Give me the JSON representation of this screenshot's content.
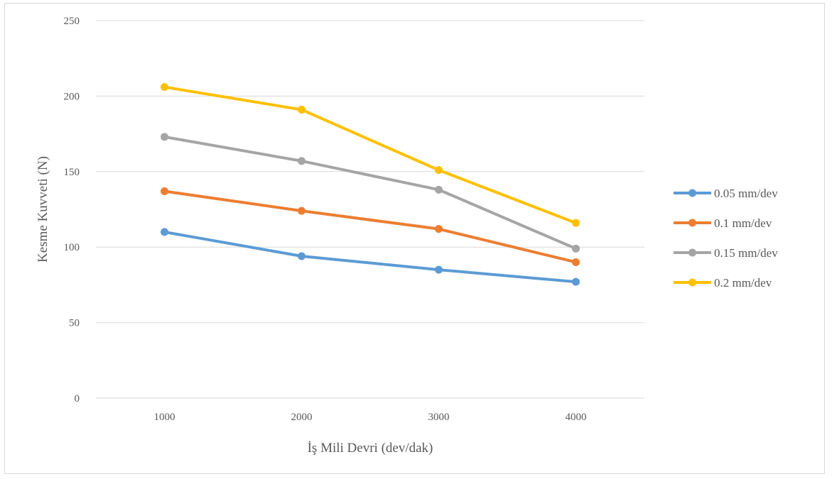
{
  "chart_data": {
    "type": "line",
    "title": "",
    "xlabel": "İş Mili Devri (dev/dak)",
    "ylabel": "Kesme Kuvveti  (N)",
    "categories": [
      "1000",
      "2000",
      "3000",
      "4000"
    ],
    "ylim": [
      0,
      250
    ],
    "yticks": [
      0,
      50,
      100,
      150,
      200,
      250
    ],
    "grid": true,
    "legend_position": "right",
    "series": [
      {
        "name": "0.05 mm/dev",
        "color": "#5b9bd5",
        "values": [
          110,
          94,
          85,
          77
        ]
      },
      {
        "name": "0.1 mm/dev",
        "color": "#ed7d31",
        "values": [
          137,
          124,
          112,
          90
        ]
      },
      {
        "name": "0.15 mm/dev",
        "color": "#a5a5a5",
        "values": [
          173,
          157,
          138,
          99
        ]
      },
      {
        "name": "0.2 mm/dev",
        "color": "#ffc000",
        "values": [
          206,
          191,
          151,
          116
        ]
      }
    ]
  }
}
